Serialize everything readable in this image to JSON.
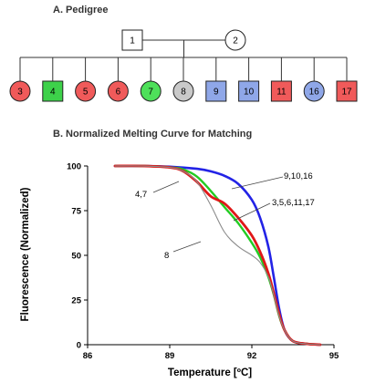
{
  "pedigree": {
    "title": "A. Pedigree",
    "parents": [
      {
        "label": "1",
        "sex": "male",
        "color": "#ffffff"
      },
      {
        "label": "2",
        "sex": "female",
        "color": "#ffffff"
      }
    ],
    "children": [
      {
        "label": "3",
        "sex": "female",
        "color": "#f05a5a"
      },
      {
        "label": "4",
        "sex": "male",
        "color": "#3dd14a"
      },
      {
        "label": "5",
        "sex": "female",
        "color": "#f05a5a"
      },
      {
        "label": "6",
        "sex": "female",
        "color": "#f05a5a"
      },
      {
        "label": "7",
        "sex": "female",
        "color": "#4ee05a"
      },
      {
        "label": "8",
        "sex": "female",
        "color": "#c9c9c9"
      },
      {
        "label": "9",
        "sex": "male",
        "color": "#8fa7e8"
      },
      {
        "label": "10",
        "sex": "male",
        "color": "#8fa7e8"
      },
      {
        "label": "11",
        "sex": "male",
        "color": "#f05a5a"
      },
      {
        "label": "16",
        "sex": "female",
        "color": "#8fa7e8"
      },
      {
        "label": "17",
        "sex": "male",
        "color": "#f05a5a"
      }
    ]
  },
  "chart_data": {
    "type": "line",
    "title": "B. Normalized Melting Curve for Matching",
    "xlabel": "Temperature [ºC]",
    "ylabel": "Fluorescence (Normalized)",
    "xlim": [
      86,
      95
    ],
    "ylim": [
      0,
      100
    ],
    "xticks": [
      "86",
      "89",
      "92",
      "95"
    ],
    "yticks": [
      "0",
      "25",
      "50",
      "75",
      "100"
    ],
    "grid": false,
    "series": [
      {
        "name": "9,10,16",
        "color": "#2323e6",
        "x": [
          87,
          88,
          89,
          90,
          90.5,
          91,
          91.5,
          92,
          92.3,
          92.6,
          92.8,
          93,
          93.2,
          93.5,
          94,
          94.5
        ],
        "y": [
          100,
          100,
          99.6,
          98.4,
          97,
          94.5,
          90,
          81,
          71,
          55,
          38,
          20,
          8,
          2,
          0.5,
          0
        ]
      },
      {
        "name": "4,7",
        "color": "#22cc22",
        "x": [
          87,
          88,
          89,
          89.5,
          90,
          90.5,
          91,
          91.5,
          92,
          92.3,
          92.6,
          92.8,
          93,
          93.2,
          93.5,
          94,
          94.5
        ],
        "y": [
          100,
          100,
          99.3,
          98,
          94,
          86,
          77,
          68,
          57,
          49,
          38,
          28,
          16,
          8,
          2,
          0.5,
          0
        ]
      },
      {
        "name": "3,5,6,11,17",
        "color": "#e01818",
        "x": [
          87,
          88,
          89,
          89.5,
          90,
          90.5,
          91,
          91.5,
          92,
          92.3,
          92.6,
          92.8,
          93,
          93.2,
          93.5,
          94,
          94.5
        ],
        "y": [
          100,
          100,
          99.2,
          97,
          91,
          83,
          79,
          71,
          61,
          52,
          40,
          29,
          17,
          8,
          2,
          0.5,
          0
        ]
      },
      {
        "name": "8",
        "color": "#8c8c8c",
        "x": [
          87,
          88,
          89,
          89.5,
          90,
          90.5,
          91,
          91.5,
          92,
          92.3,
          92.6,
          92.8,
          93,
          93.2,
          93.5,
          94,
          94.5
        ],
        "y": [
          100,
          100,
          99.2,
          97,
          91,
          78,
          63,
          55,
          50,
          46,
          38,
          28,
          16,
          8,
          2,
          0.5,
          0
        ]
      }
    ],
    "annotations": [
      {
        "text": "9,10,16",
        "x": 92.2,
        "y": 85
      },
      {
        "text": "4,7",
        "x": 90.3,
        "y": 88
      },
      {
        "text": "3,5,6,11,17",
        "x": 92.5,
        "y": 68
      },
      {
        "text": "8",
        "x": 90.4,
        "y": 55
      }
    ]
  }
}
